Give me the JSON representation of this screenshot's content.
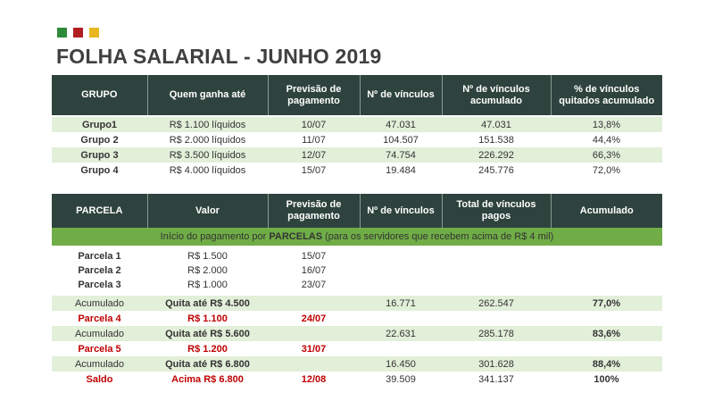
{
  "header": {
    "title": "FOLHA SALARIAL - JUNHO 2019"
  },
  "tables": [
    {
      "columns": [
        "GRUPO",
        "Quem ganha até",
        "Previsão de pagamento",
        "Nº de vínculos",
        "Nº de vínculos acumulado",
        "% de vínculos quitados acumulado"
      ],
      "rows": [
        [
          "Grupo1",
          "R$ 1.100 líquidos",
          "10/07",
          "47.031",
          "47.031",
          "13,8%"
        ],
        [
          "Grupo 2",
          "R$ 2.000 líquidos",
          "11/07",
          "104.507",
          "151.538",
          "44,4%"
        ],
        [
          "Grupo 3",
          "R$ 3.500 líquidos",
          "12/07",
          "74.754",
          "226.292",
          "66,3%"
        ],
        [
          "Grupo 4",
          "R$ 4.000 líquidos",
          "15/07",
          "19.484",
          "245.776",
          "72,0%"
        ]
      ]
    },
    {
      "columns": [
        "PARCELA",
        "Valor",
        "Previsão de pagamento",
        "Nº de vínculos",
        "Total de vínculos pagos",
        "Acumulado"
      ],
      "banner": [
        "Início do pagamento por ",
        "PARCELAS",
        " (para os servidores que recebem acima de R$ 4 mil)"
      ],
      "rows": [
        {
          "parcela": "Parcela 1",
          "valor": "R$ 1.500",
          "previsao": "15/07"
        },
        {
          "parcela": "Parcela 2",
          "valor": "R$ 2.000",
          "previsao": "16/07"
        },
        {
          "parcela": "Parcela 3",
          "valor": "R$ 1.000",
          "previsao": "23/07"
        },
        {
          "parcela": "Acumulado",
          "valor": "Quita até R$ 4.500",
          "vinculos": "16.771",
          "total": "262.547",
          "acumulado": "77,0%"
        },
        {
          "parcela": "Parcela 4",
          "valor": "R$ 1.100",
          "previsao": "24/07"
        },
        {
          "parcela": "Acumulado",
          "valor": "Quita até R$ 5.600",
          "vinculos": "22.631",
          "total": "285.178",
          "acumulado": "83,6%"
        },
        {
          "parcela": "Parcela 5",
          "valor": "R$ 1.200",
          "previsao": "31/07"
        },
        {
          "parcela": "Acumulado",
          "valor": "Quita até R$ 6.800",
          "vinculos": "16.450",
          "total": "301.628",
          "acumulado": "88,4%"
        },
        {
          "parcela": "Saldo",
          "valor": "Acima R$ 6.800",
          "previsao": "12/08",
          "vinculos": "39.509",
          "total": "341.137",
          "acumulado": "100%"
        }
      ]
    }
  ]
}
